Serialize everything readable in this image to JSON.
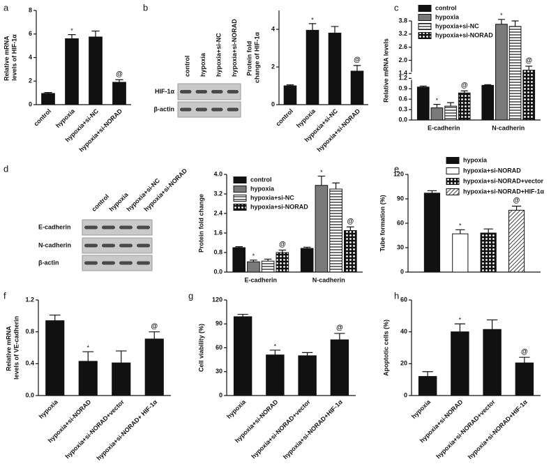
{
  "blots": [
    {
      "panel": "b",
      "lanes": [
        "control",
        "hypoxia",
        "hypoxia+si-NC",
        "hypoxia+si-NORAD"
      ],
      "rows": [
        "HIF-1α",
        "β-actin"
      ]
    },
    {
      "panel": "d",
      "lanes": [
        "control",
        "hypoxia",
        "hypoxia+si-NC",
        "hypoxia+si-NORAD"
      ],
      "rows": [
        "E-cadherin",
        "N-cadherin",
        "β-actin"
      ]
    }
  ],
  "chart_data": [
    {
      "type": "bar",
      "panel": "a",
      "ylabel": "Relative mRNA levels of HIF-1α",
      "categories": [
        "control",
        "hypoxia",
        "hypoxia+si-NC",
        "hypoxia+si-NORAD"
      ],
      "ylim": [
        0,
        8
      ],
      "yticks": [
        0,
        2,
        4,
        6,
        8
      ],
      "series": [
        {
          "fill": "black",
          "values": [
            0.95,
            5.6,
            5.75,
            1.9
          ],
          "errors": [
            0.08,
            0.35,
            0.5,
            0.22
          ],
          "annotations": [
            null,
            "*",
            null,
            "@"
          ]
        }
      ]
    },
    {
      "type": "bar",
      "ylabel": "Protein fold change of HIF-1α",
      "categories": [
        "control",
        "hypoxia",
        "hypoxia+si-NC",
        "hypoxia+si-NORAD"
      ],
      "ylim": [
        0,
        5
      ],
      "yticks": [
        0,
        2,
        4
      ],
      "series": [
        {
          "fill": "black",
          "values": [
            1.0,
            3.95,
            3.8,
            1.78
          ],
          "errors": [
            0.05,
            0.35,
            0.35,
            0.3
          ],
          "annotations": [
            null,
            "*",
            null,
            "@"
          ]
        }
      ]
    },
    {
      "type": "bar",
      "panel": "c",
      "ylabel": "Relative mRNA levels",
      "categories": [
        "E-cadherin",
        "N-cadherin"
      ],
      "ylim": [
        0,
        3.8
      ],
      "ybreak": [
        1.2,
        1.4
      ],
      "yticks": [
        {
          "value": 0,
          "label": "0.0"
        },
        0.3,
        0.6,
        0.9,
        1.2,
        1.4,
        {
          "value": 2,
          "label": "2.0"
        },
        2.6,
        3.2,
        3.8
      ],
      "legend": "top",
      "series": [
        {
          "name": "control",
          "fill": "black",
          "values": [
            0.95,
            1.0
          ],
          "errors": [
            0.03,
            0.02
          ],
          "annotations": [
            null,
            null
          ]
        },
        {
          "name": "hypoxia",
          "fill": "gray",
          "values": [
            0.35,
            3.65
          ],
          "errors": [
            0.1,
            0.22
          ],
          "annotations": [
            "*",
            "*"
          ]
        },
        {
          "name": "hypoxia+si-NC",
          "fill": "hlines",
          "values": [
            0.4,
            3.55
          ],
          "errors": [
            0.1,
            0.25
          ],
          "annotations": [
            null,
            null
          ]
        },
        {
          "name": "hypoxia+si-NORAD",
          "fill": "checker",
          "values": [
            0.78,
            1.55
          ],
          "errors": [
            0.06,
            0.18
          ],
          "annotations": [
            "@",
            "@"
          ]
        }
      ]
    },
    {
      "type": "bar",
      "ylabel": "Protein fold change",
      "categories": [
        "E-cadherin",
        "N-cadherin"
      ],
      "ylim": [
        0,
        4
      ],
      "yticks": [
        {
          "value": 0,
          "label": "0.0"
        },
        0.8,
        1.6,
        2.4,
        3.2,
        {
          "value": 4,
          "label": "4.0"
        }
      ],
      "legend": "top-left",
      "series": [
        {
          "name": "control",
          "fill": "black",
          "values": [
            1.0,
            0.97
          ],
          "errors": [
            0.04,
            0.05
          ],
          "annotations": [
            null,
            null
          ]
        },
        {
          "name": "hypoxia",
          "fill": "gray",
          "values": [
            0.42,
            3.55
          ],
          "errors": [
            0.07,
            0.38
          ],
          "annotations": [
            "*",
            "*"
          ]
        },
        {
          "name": "hypoxia+si-NC",
          "fill": "hlines",
          "values": [
            0.45,
            3.4
          ],
          "errors": [
            0.08,
            0.25
          ],
          "annotations": [
            null,
            null
          ]
        },
        {
          "name": "hypoxia+si-NORAD",
          "fill": "checker",
          "values": [
            0.8,
            1.7
          ],
          "errors": [
            0.1,
            0.15
          ],
          "annotations": [
            "@",
            "@"
          ]
        }
      ]
    },
    {
      "type": "bar",
      "panel": "e",
      "ylabel": "Tube formation (%)",
      "categories": [
        null
      ],
      "ylim": [
        0,
        120
      ],
      "yticks": [
        0,
        30,
        60,
        90,
        120
      ],
      "legend": "top-right",
      "series": [
        {
          "name": "hypoxia",
          "fill": "black",
          "values": [
            97
          ],
          "errors": [
            3
          ],
          "annotations": [
            null
          ]
        },
        {
          "name": "hypoxia+si-NORAD",
          "fill": "white",
          "values": [
            47
          ],
          "errors": [
            5
          ],
          "annotations": [
            "*"
          ]
        },
        {
          "name": "hypoxia+si-NORAD+vector",
          "fill": "checker",
          "values": [
            48
          ],
          "errors": [
            5
          ],
          "annotations": [
            null
          ]
        },
        {
          "name": "hypoxia+si-NORAD+HIF-1α",
          "fill": "diag",
          "values": [
            76
          ],
          "errors": [
            5
          ],
          "annotations": [
            "@"
          ]
        }
      ]
    },
    {
      "type": "bar",
      "panel": "f",
      "ylabel": "Relative mRNA levels of VE-cadherin",
      "categories": [
        "hypoxia",
        "hypoxia+si-NORAD",
        "hypoxia+si-NORAD+vector",
        "hypoxia+si-NORAD+ HIF-1α"
      ],
      "ylim": [
        0,
        1.2
      ],
      "yticks": [
        {
          "value": 0,
          "label": "0.0"
        },
        0.4,
        0.8,
        1.2
      ],
      "series": [
        {
          "fill": "black",
          "values": [
            0.94,
            0.43,
            0.41,
            0.71
          ],
          "errors": [
            0.07,
            0.12,
            0.15,
            0.09
          ],
          "annotations": [
            null,
            "*",
            null,
            "@"
          ]
        }
      ]
    },
    {
      "type": "bar",
      "panel": "g",
      "ylabel": "Cell viability (%)",
      "categories": [
        "hypoxia",
        "hypoxia+si-NORAD",
        "hypoxia+si-NORAD+vector",
        "hypoxia+si-NORAD+HIF-1α"
      ],
      "ylim": [
        0,
        120
      ],
      "yticks": [
        0,
        30,
        60,
        90,
        120
      ],
      "series": [
        {
          "fill": "black",
          "values": [
            99,
            51,
            50,
            70
          ],
          "errors": [
            3,
            6,
            4,
            8
          ],
          "annotations": [
            null,
            "*",
            null,
            "@"
          ]
        }
      ]
    },
    {
      "type": "bar",
      "panel": "h",
      "ylabel": "Apoptotic cells (%)",
      "categories": [
        "hypoxia",
        "hypoxia+si-NORAD",
        "hypoxia+si-NORAD+vector",
        "hypoxia+si-NORAD+HIF-1α"
      ],
      "ylim": [
        0,
        60
      ],
      "yticks": [
        0,
        20,
        40,
        60
      ],
      "series": [
        {
          "fill": "black",
          "values": [
            12,
            40,
            41.5,
            20.5
          ],
          "errors": [
            3,
            5,
            6,
            3.5
          ],
          "annotations": [
            null,
            "*",
            null,
            "@"
          ]
        }
      ]
    }
  ]
}
